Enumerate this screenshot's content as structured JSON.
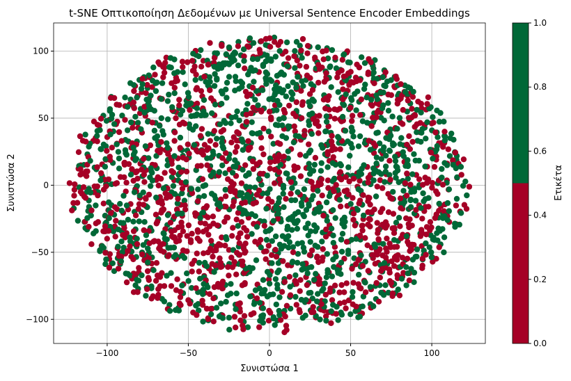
{
  "chart_data": {
    "type": "scatter",
    "title": "t-SNE Οπτικοποίηση Δεδομένων με Universal Sentence Encoder Embeddings",
    "xlabel": "Συνιστώσα 1",
    "ylabel": "Συνιστώσα 2",
    "xlim": [
      -133,
      133
    ],
    "ylim": [
      -118,
      121
    ],
    "xticks": [
      -100,
      -50,
      0,
      50,
      100
    ],
    "yticks": [
      -100,
      -50,
      0,
      50,
      100
    ],
    "xtick_labels": [
      "−100",
      "−50",
      "0",
      "50",
      "100"
    ],
    "ytick_labels": [
      "−100",
      "−50",
      "0",
      "50",
      "100"
    ],
    "grid": true,
    "colormap": "RdYlGn (2 bins)",
    "colors": {
      "label_0": "#a50026",
      "label_1": "#006837"
    },
    "point_cloud": {
      "shape": "ellipse",
      "center": [
        0,
        0
      ],
      "x_extent": [
        -122,
        122
      ],
      "y_extent": [
        -109,
        110
      ],
      "labels": [
        0,
        1
      ],
      "note_clusters": [
        {
          "label": 1,
          "center": [
            25,
            -30
          ]
        },
        {
          "label": 1,
          "center": [
            62,
            25
          ]
        },
        {
          "label": 1,
          "center": [
            -15,
            80
          ]
        },
        {
          "label": 0,
          "center": [
            70,
            -35
          ]
        },
        {
          "label": 0,
          "center": [
            -40,
            -35
          ]
        }
      ]
    },
    "colorbar": {
      "label": "Ετικέτα",
      "range": [
        0,
        1
      ],
      "ticks": [
        0.0,
        0.2,
        0.4,
        0.6,
        0.8,
        1.0
      ],
      "tick_labels": [
        "0.0",
        "0.2",
        "0.4",
        "0.6",
        "0.8",
        "1.0"
      ]
    }
  }
}
